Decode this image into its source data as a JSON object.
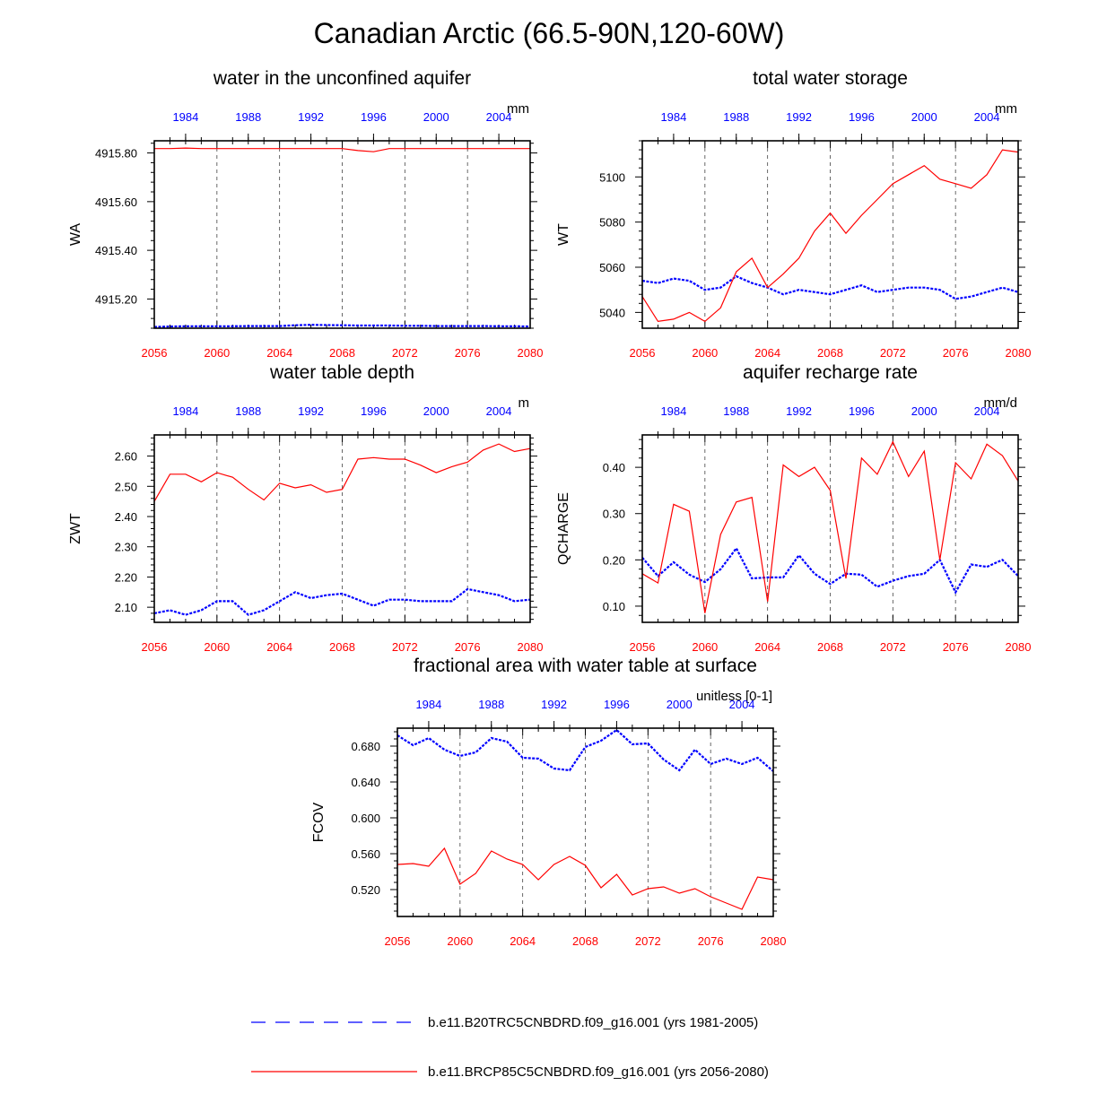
{
  "figure_title": "Canadian Arctic (66.5-90N,120-60W)",
  "colors": {
    "control": "#0000ff",
    "future": "#ff0000",
    "axis": "#000000",
    "grid": "#444444"
  },
  "legend": {
    "control_label": "b.e11.B20TRC5CNBDRD.f09_g16.001 (yrs 1981-2005)",
    "future_label": "b.e11.BRCP85C5CNBDRD.f09_g16.001 (yrs 2056-2080)"
  },
  "chart_data": [
    {
      "type": "line",
      "title": "water in the unconfined aquifer",
      "ylabel": "WA",
      "units": "mm",
      "ylim": [
        4915.08,
        4915.85
      ],
      "yticks": [
        4915.2,
        4915.4,
        4915.6,
        4915.8
      ],
      "ytick_labels": [
        "4915.20",
        "4915.40",
        "4915.60",
        "4915.80"
      ],
      "xlim": [
        2056,
        2080
      ],
      "bottom_ticks": [
        2056,
        2060,
        2064,
        2068,
        2072,
        2076,
        2080
      ],
      "top_tick_labels": [
        "1984",
        "1988",
        "1992",
        "1996",
        "2000",
        "2004"
      ],
      "series": [
        {
          "name": "b.e11.B20TRC5CNBDRD.f09_g16.001 (yrs 1981-2005)",
          "style": "dashed",
          "values": [
            4915.085,
            4915.087,
            4915.088,
            4915.088,
            4915.088,
            4915.088,
            4915.089,
            4915.089,
            4915.089,
            4915.092,
            4915.094,
            4915.093,
            4915.092,
            4915.091,
            4915.091,
            4915.091,
            4915.09,
            4915.09,
            4915.089,
            4915.089,
            4915.089,
            4915.089,
            4915.088,
            4915.088,
            4915.087
          ]
        },
        {
          "name": "b.e11.BRCP85C5CNBDRD.f09_g16.001 (yrs 2056-2080)",
          "style": "solid",
          "values": [
            4915.818,
            4915.818,
            4915.82,
            4915.818,
            4915.818,
            4915.818,
            4915.818,
            4915.818,
            4915.818,
            4915.818,
            4915.818,
            4915.818,
            4915.818,
            4915.81,
            4915.805,
            4915.818,
            4915.818,
            4915.818,
            4915.818,
            4915.818,
            4915.818,
            4915.818,
            4915.818,
            4915.818,
            4915.818
          ]
        }
      ]
    },
    {
      "type": "line",
      "title": "total water storage",
      "ylabel": "WT",
      "units": "mm",
      "ylim": [
        5033,
        5116
      ],
      "yticks": [
        5040,
        5060,
        5080,
        5100
      ],
      "ytick_labels": [
        "5040",
        "5060",
        "5080",
        "5100"
      ],
      "xlim": [
        2056,
        2080
      ],
      "bottom_ticks": [
        2056,
        2060,
        2064,
        2068,
        2072,
        2076,
        2080
      ],
      "top_tick_labels": [
        "1984",
        "1988",
        "1992",
        "1996",
        "2000",
        "2004"
      ],
      "series": [
        {
          "name": "b.e11.B20TRC5CNBDRD.f09_g16.001 (yrs 1981-2005)",
          "style": "dashed",
          "values": [
            5054,
            5053,
            5055,
            5054,
            5050,
            5051,
            5056,
            5053,
            5051,
            5048,
            5050,
            5049,
            5048,
            5050,
            5052,
            5049,
            5050,
            5051,
            5051,
            5050,
            5046,
            5047,
            5049,
            5051,
            5049
          ]
        },
        {
          "name": "b.e11.BRCP85C5CNBDRD.f09_g16.001 (yrs 2056-2080)",
          "style": "solid",
          "values": [
            5047,
            5036,
            5037,
            5040,
            5036,
            5042,
            5058,
            5064,
            5051,
            5057,
            5064,
            5076,
            5084,
            5075,
            5083,
            5090,
            5097,
            5101,
            5105,
            5099,
            5097,
            5095,
            5101,
            5112,
            5111
          ]
        }
      ]
    },
    {
      "type": "line",
      "title": "water table depth",
      "ylabel": "ZWT",
      "units": "m",
      "ylim": [
        2.05,
        2.67
      ],
      "yticks": [
        2.1,
        2.2,
        2.3,
        2.4,
        2.5,
        2.6
      ],
      "ytick_labels": [
        "2.10",
        "2.20",
        "2.30",
        "2.40",
        "2.50",
        "2.60"
      ],
      "xlim": [
        2056,
        2080
      ],
      "bottom_ticks": [
        2056,
        2060,
        2064,
        2068,
        2072,
        2076,
        2080
      ],
      "top_tick_labels": [
        "1984",
        "1988",
        "1992",
        "1996",
        "2000",
        "2004"
      ],
      "series": [
        {
          "name": "b.e11.B20TRC5CNBDRD.f09_g16.001 (yrs 1981-2005)",
          "style": "dashed",
          "values": [
            2.08,
            2.09,
            2.075,
            2.09,
            2.12,
            2.12,
            2.075,
            2.09,
            2.12,
            2.15,
            2.13,
            2.14,
            2.145,
            2.125,
            2.105,
            2.125,
            2.125,
            2.12,
            2.12,
            2.12,
            2.16,
            2.15,
            2.14,
            2.12,
            2.125
          ]
        },
        {
          "name": "b.e11.BRCP85C5CNBDRD.f09_g16.001 (yrs 2056-2080)",
          "style": "solid",
          "values": [
            2.45,
            2.54,
            2.54,
            2.515,
            2.545,
            2.53,
            2.49,
            2.455,
            2.51,
            2.495,
            2.505,
            2.48,
            2.49,
            2.59,
            2.595,
            2.59,
            2.59,
            2.57,
            2.545,
            2.565,
            2.58,
            2.62,
            2.64,
            2.615,
            2.625
          ]
        }
      ]
    },
    {
      "type": "line",
      "title": "aquifer recharge rate",
      "ylabel": "QCHARGE",
      "units": "mm/d",
      "ylim": [
        0.065,
        0.47
      ],
      "yticks": [
        0.1,
        0.2,
        0.3,
        0.4
      ],
      "ytick_labels": [
        "0.10",
        "0.20",
        "0.30",
        "0.40"
      ],
      "xlim": [
        2056,
        2080
      ],
      "bottom_ticks": [
        2056,
        2060,
        2064,
        2068,
        2072,
        2076,
        2080
      ],
      "top_tick_labels": [
        "1984",
        "1988",
        "1992",
        "1996",
        "2000",
        "2004"
      ],
      "series": [
        {
          "name": "b.e11.B20TRC5CNBDRD.f09_g16.001 (yrs 1981-2005)",
          "style": "dashed",
          "values": [
            0.205,
            0.165,
            0.195,
            0.168,
            0.152,
            0.18,
            0.225,
            0.16,
            0.162,
            0.162,
            0.21,
            0.17,
            0.148,
            0.17,
            0.168,
            0.142,
            0.155,
            0.165,
            0.17,
            0.2,
            0.13,
            0.19,
            0.185,
            0.2,
            0.165
          ]
        },
        {
          "name": "b.e11.BRCP85C5CNBDRD.f09_g16.001 (yrs 2056-2080)",
          "style": "solid",
          "values": [
            0.17,
            0.15,
            0.32,
            0.305,
            0.085,
            0.255,
            0.325,
            0.335,
            0.11,
            0.405,
            0.38,
            0.4,
            0.35,
            0.16,
            0.42,
            0.385,
            0.455,
            0.38,
            0.435,
            0.2,
            0.41,
            0.375,
            0.45,
            0.425,
            0.37
          ]
        }
      ]
    },
    {
      "type": "line",
      "title": "fractional area with water table at surface",
      "ylabel": "FCOV",
      "units": "unitless [0-1]",
      "ylim": [
        0.49,
        0.7
      ],
      "yticks": [
        0.52,
        0.56,
        0.6,
        0.64,
        0.68
      ],
      "ytick_labels": [
        "0.520",
        "0.560",
        "0.600",
        "0.640",
        "0.680"
      ],
      "xlim": [
        2056,
        2080
      ],
      "bottom_ticks": [
        2056,
        2060,
        2064,
        2068,
        2072,
        2076,
        2080
      ],
      "top_tick_labels": [
        "1984",
        "1988",
        "1992",
        "1996",
        "2000",
        "2004"
      ],
      "series": [
        {
          "name": "b.e11.B20TRC5CNBDRD.f09_g16.001 (yrs 1981-2005)",
          "style": "dashed",
          "values": [
            0.692,
            0.681,
            0.689,
            0.676,
            0.669,
            0.673,
            0.689,
            0.685,
            0.667,
            0.666,
            0.655,
            0.653,
            0.679,
            0.686,
            0.698,
            0.682,
            0.683,
            0.665,
            0.653,
            0.676,
            0.66,
            0.666,
            0.66,
            0.667,
            0.652
          ]
        },
        {
          "name": "b.e11.BRCP85C5CNBDRD.f09_g16.001 (yrs 2056-2080)",
          "style": "solid",
          "values": [
            0.548,
            0.549,
            0.546,
            0.566,
            0.526,
            0.538,
            0.563,
            0.554,
            0.548,
            0.531,
            0.548,
            0.557,
            0.547,
            0.522,
            0.537,
            0.514,
            0.521,
            0.523,
            0.516,
            0.521,
            0.512,
            0.505,
            0.498,
            0.534,
            0.531
          ]
        }
      ]
    }
  ]
}
